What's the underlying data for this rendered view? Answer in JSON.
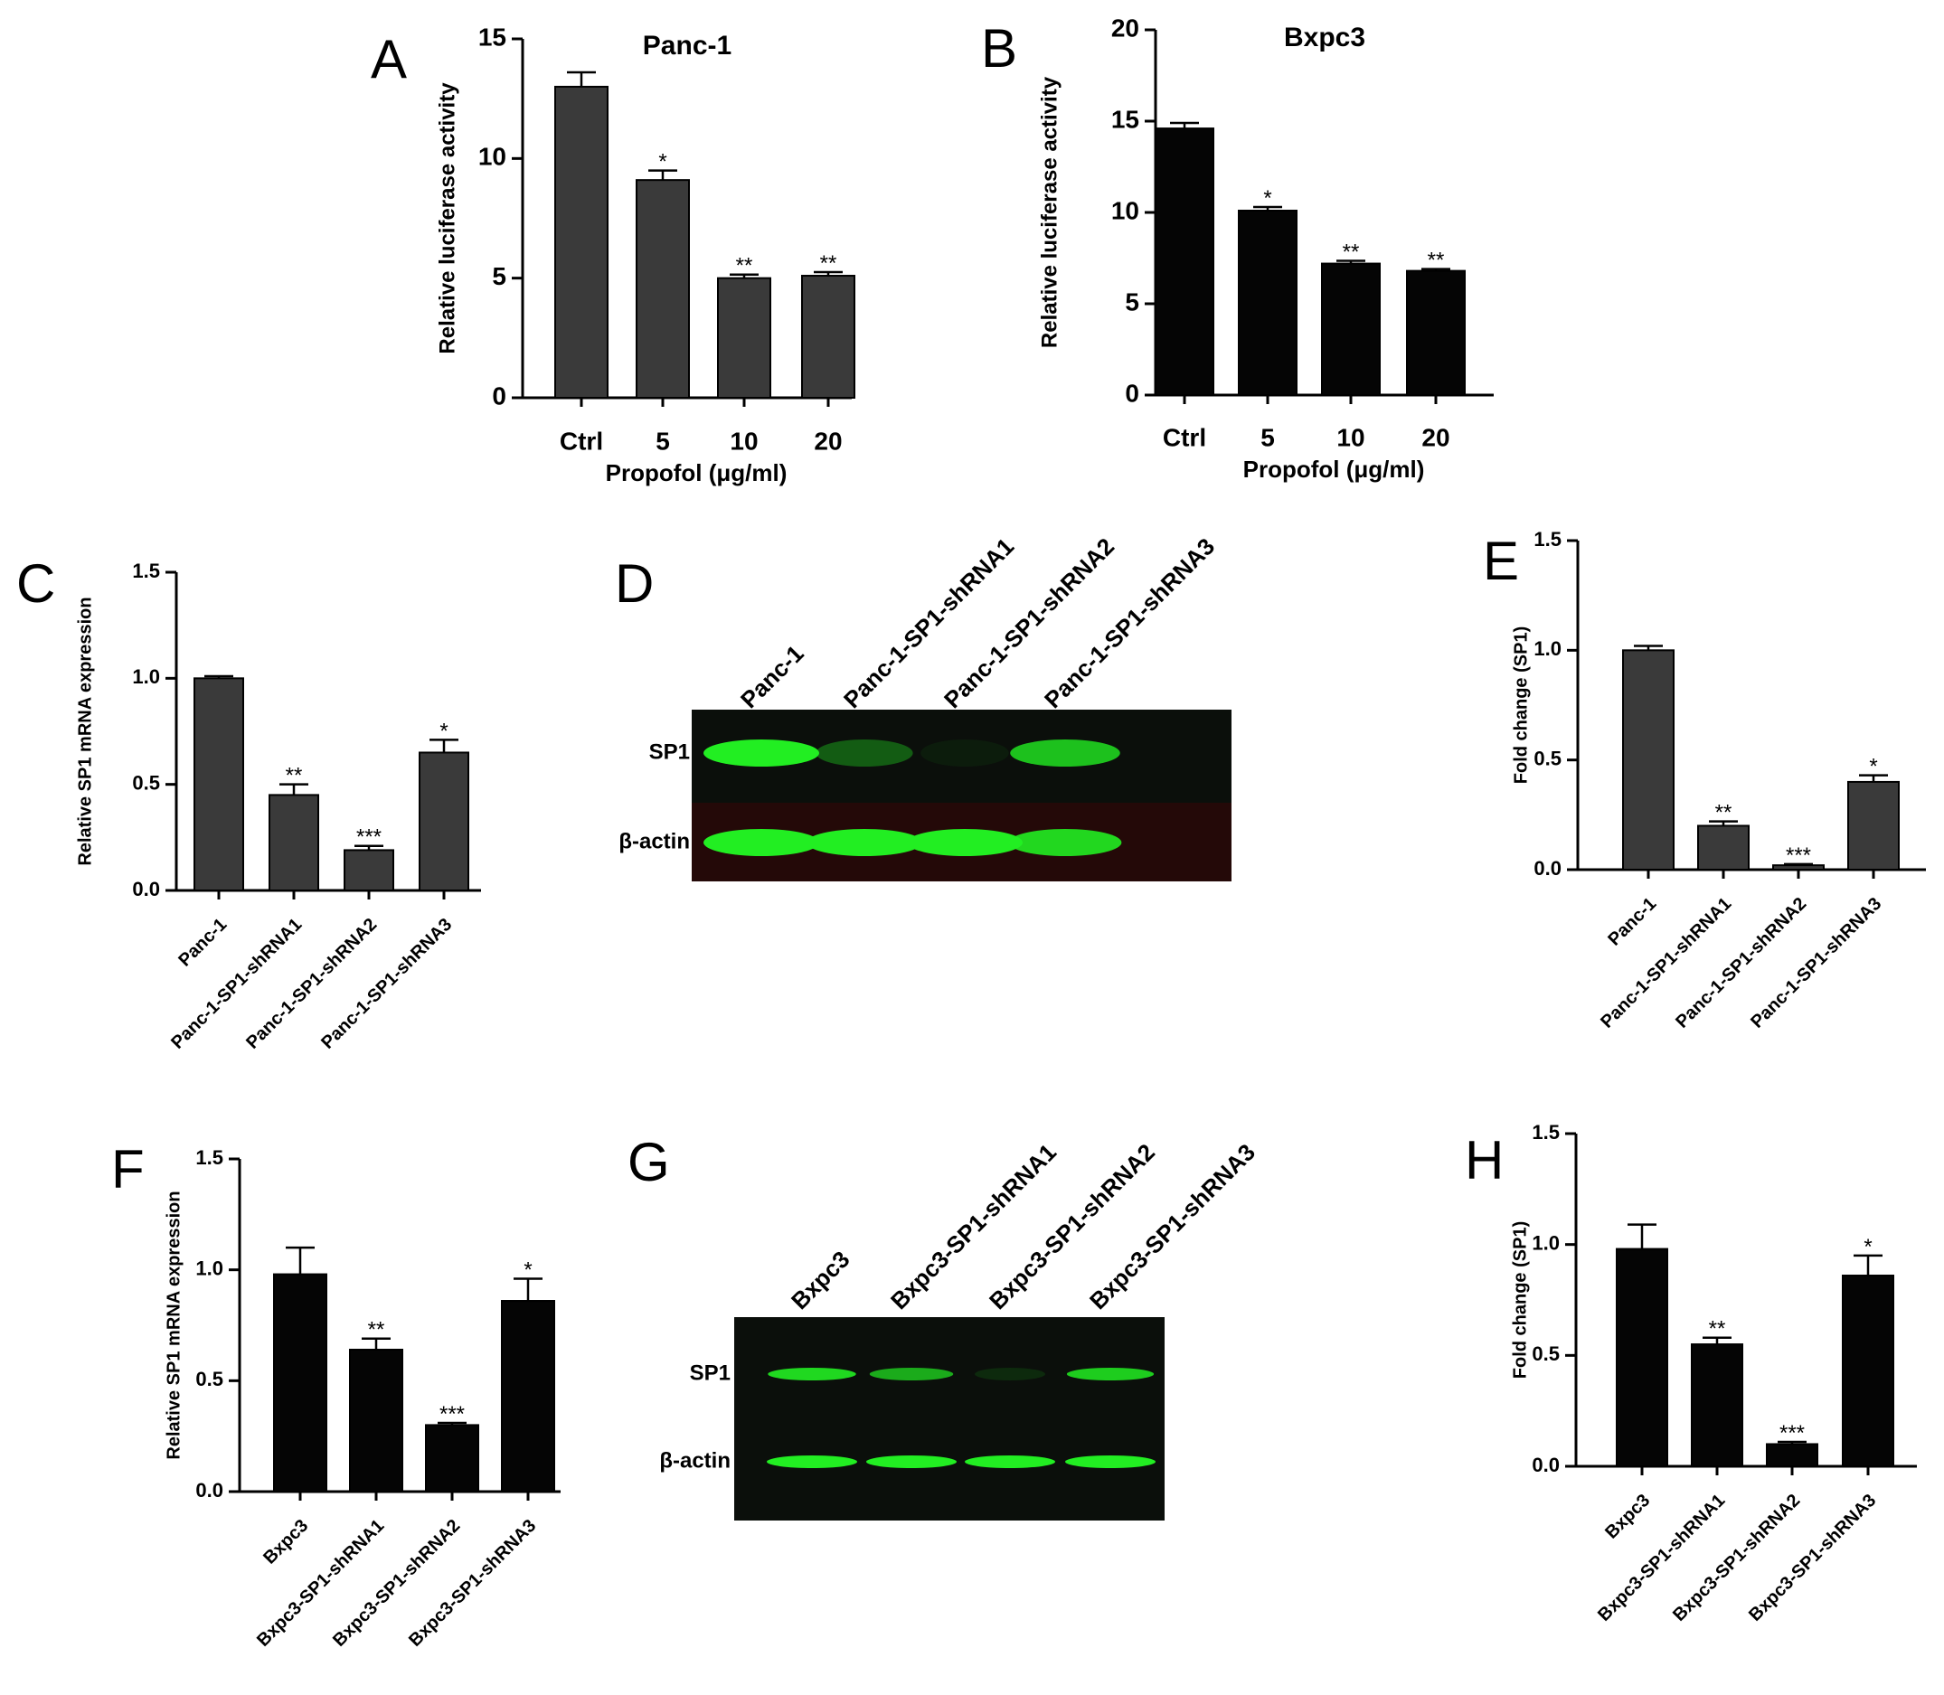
{
  "colors": {
    "bar_gray": "#3a3a3a",
    "bar_black": "#050505",
    "axis": "#000000",
    "blot_band": "#22ee22",
    "blot_bg": "#0b0f0b"
  },
  "chart_data": [
    {
      "panel": "A",
      "type": "bar",
      "title": "Panc-1",
      "categories": [
        "Ctrl",
        "5",
        "10",
        "20"
      ],
      "values": [
        13.0,
        9.1,
        5.0,
        5.1
      ],
      "errors": [
        0.6,
        0.4,
        0.15,
        0.15
      ],
      "significance": [
        "",
        "*",
        "**",
        "**"
      ],
      "ylabel": "Relative luciferase activity",
      "xlabel": "Propofol  (μg/ml)",
      "yticks": [
        0,
        5,
        10,
        15
      ],
      "ylim": [
        0,
        15
      ],
      "bar_color": "#3a3a3a",
      "grid": false
    },
    {
      "panel": "B",
      "type": "bar",
      "title": "Bxpc3",
      "categories": [
        "Ctrl",
        "5",
        "10",
        "20"
      ],
      "values": [
        14.6,
        10.1,
        7.2,
        6.8
      ],
      "errors": [
        0.3,
        0.2,
        0.15,
        0.1
      ],
      "significance": [
        "",
        "*",
        "**",
        "**"
      ],
      "ylabel": "Relative luciferase activity",
      "xlabel": "Propofol  (μg/ml)",
      "yticks": [
        0,
        5,
        10,
        15,
        20
      ],
      "ylim": [
        0,
        20
      ],
      "bar_color": "#050505",
      "grid": false
    },
    {
      "panel": "C",
      "type": "bar",
      "title": "",
      "categories": [
        "Panc-1",
        "Panc-1-SP1-shRNA1",
        "Panc-1-SP1-shRNA2",
        "Panc-1-SP1-shRNA3"
      ],
      "values": [
        1.0,
        0.45,
        0.19,
        0.65
      ],
      "errors": [
        0.01,
        0.05,
        0.02,
        0.06
      ],
      "significance": [
        "",
        "**",
        "***",
        "*"
      ],
      "ylabel": "Relative SP1 mRNA expression",
      "xlabel": "",
      "yticks": [
        "0.0",
        "0.5",
        "1.0",
        "1.5"
      ],
      "ylim": [
        0,
        1.5
      ],
      "bar_color": "#3a3a3a",
      "grid": false
    },
    {
      "panel": "E",
      "type": "bar",
      "title": "",
      "categories": [
        "Panc-1",
        "Panc-1-SP1-shRNA1",
        "Panc-1-SP1-shRNA2",
        "Panc-1-SP1-shRNA3"
      ],
      "values": [
        1.0,
        0.2,
        0.02,
        0.4
      ],
      "errors": [
        0.02,
        0.02,
        0.005,
        0.03
      ],
      "significance": [
        "",
        "**",
        "***",
        "*"
      ],
      "ylabel": "Fold change (SP1)",
      "xlabel": "",
      "yticks": [
        "0.0",
        "0.5",
        "1.0",
        "1.5"
      ],
      "ylim": [
        0,
        1.5
      ],
      "bar_color": "#3a3a3a",
      "grid": false
    },
    {
      "panel": "F",
      "type": "bar",
      "title": "",
      "categories": [
        "Bxpc3",
        "Bxpc3-SP1-shRNA1",
        "Bxpc3-SP1-shRNA2",
        "Bxpc3-SP1-shRNA3"
      ],
      "values": [
        0.98,
        0.64,
        0.3,
        0.86
      ],
      "errors": [
        0.12,
        0.05,
        0.01,
        0.1
      ],
      "significance": [
        "",
        "**",
        "***",
        "*"
      ],
      "ylabel": "Relative SP1 mRNA expression",
      "xlabel": "",
      "yticks": [
        "0.0",
        "0.5",
        "1.0",
        "1.5"
      ],
      "ylim": [
        0,
        1.5
      ],
      "bar_color": "#050505",
      "grid": false
    },
    {
      "panel": "H",
      "type": "bar",
      "title": "",
      "categories": [
        "Bxpc3",
        "Bxpc3-SP1-shRNA1",
        "Bxpc3-SP1-shRNA2",
        "Bxpc3-SP1-shRNA3"
      ],
      "values": [
        0.98,
        0.55,
        0.1,
        0.86
      ],
      "errors": [
        0.11,
        0.03,
        0.01,
        0.09
      ],
      "significance": [
        "",
        "**",
        "***",
        "*"
      ],
      "ylabel": "Fold change (SP1)",
      "xlabel": "",
      "yticks": [
        "0.0",
        "0.5",
        "1.0",
        "1.5"
      ],
      "ylim": [
        0,
        1.5
      ],
      "bar_color": "#050505",
      "grid": false
    }
  ],
  "blots": [
    {
      "panel": "D",
      "lanes": [
        "Panc-1",
        "Panc-1-SP1-shRNA1",
        "Panc-1-SP1-shRNA2",
        "Panc-1-SP1-shRNA3"
      ],
      "rows": [
        "SP1",
        "β-actin"
      ],
      "band_intensity": [
        [
          1.0,
          0.35,
          0.05,
          0.8
        ],
        [
          1.0,
          1.0,
          1.0,
          0.9
        ]
      ]
    },
    {
      "panel": "G",
      "lanes": [
        "Bxpc3",
        "Bxpc3-SP1-shRNA1",
        "Bxpc3-SP1-shRNA2",
        "Bxpc3-SP1-shRNA3"
      ],
      "rows": [
        "SP1",
        "β-actin"
      ],
      "band_intensity": [
        [
          0.9,
          0.7,
          0.12,
          0.85
        ],
        [
          1.0,
          1.0,
          1.0,
          1.0
        ]
      ]
    }
  ]
}
